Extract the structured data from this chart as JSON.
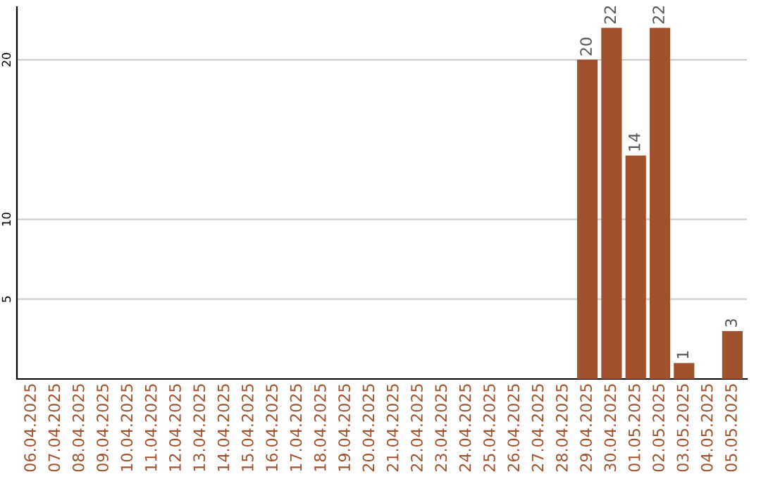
{
  "chart_data": {
    "type": "bar",
    "categories": [
      "06.04.2025",
      "07.04.2025",
      "08.04.2025",
      "09.04.2025",
      "10.04.2025",
      "11.04.2025",
      "12.04.2025",
      "13.04.2025",
      "14.04.2025",
      "15.04.2025",
      "16.04.2025",
      "17.04.2025",
      "18.04.2025",
      "19.04.2025",
      "20.04.2025",
      "21.04.2025",
      "22.04.2025",
      "23.04.2025",
      "24.04.2025",
      "25.04.2025",
      "26.04.2025",
      "27.04.2025",
      "28.04.2025",
      "29.04.2025",
      "30.04.2025",
      "01.05.2025",
      "02.05.2025",
      "03.05.2025",
      "04.05.2025",
      "05.05.2025"
    ],
    "values": [
      0,
      0,
      0,
      0,
      0,
      0,
      0,
      0,
      0,
      0,
      0,
      0,
      0,
      0,
      0,
      0,
      0,
      0,
      0,
      0,
      0,
      0,
      0,
      20,
      22,
      14,
      22,
      1,
      0,
      3
    ],
    "value_labels": [
      null,
      null,
      null,
      null,
      null,
      null,
      null,
      null,
      null,
      null,
      null,
      null,
      null,
      null,
      null,
      null,
      null,
      null,
      null,
      null,
      null,
      null,
      null,
      "20",
      "22",
      "14",
      "22",
      "1",
      null,
      "3"
    ],
    "color": "#a0522d",
    "ylim": [
      0,
      23.3
    ],
    "yticks": [
      5,
      10,
      20
    ],
    "grid": "y"
  }
}
